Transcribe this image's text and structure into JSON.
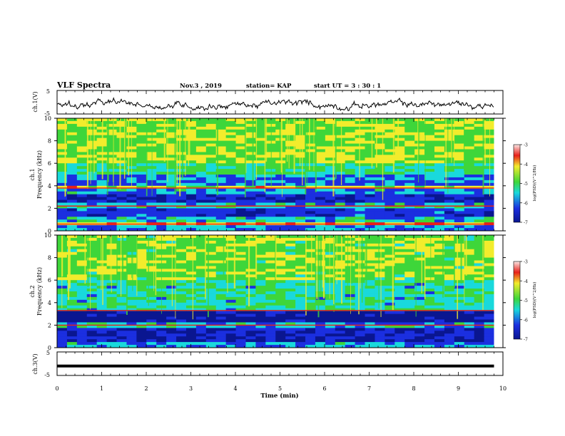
{
  "header": {
    "title": "VLF Spectra",
    "date": "Nov.3 , 2019",
    "station": "station= KAP",
    "start": "start UT = 3 : 30 : 1"
  },
  "colors": {
    "red": "#e8201a",
    "yellow": "#f2ec2c",
    "green": "#3ed63a",
    "cyan": "#19d9dc",
    "blue": "#1b2fe0",
    "navy": "#0a1690",
    "line": "#000000"
  },
  "chart_data": [
    {
      "type": "line",
      "ylabel": "ch.1(V)",
      "ylim": [
        -5,
        5
      ],
      "yticks": [
        -5,
        5
      ],
      "xlim": [
        0,
        10
      ],
      "x_range_recorded": [
        0,
        9.8
      ],
      "note_values": "noisy waveform fluctuating around roughly -1 V"
    },
    {
      "type": "heatmap",
      "ylabel": "ch.1\nFrequency (kHz)",
      "ylim": [
        0,
        10
      ],
      "yticks": [
        0,
        2,
        4,
        6,
        8,
        10
      ],
      "xlim": [
        0,
        10
      ],
      "colorbar": {
        "label": "log(PSD)(V^2/Hz)",
        "range": [
          -7,
          -3
        ],
        "ticks": [
          -7,
          -6,
          -5,
          -4,
          -3
        ]
      },
      "bands": [
        {
          "from": 0,
          "to": 0.5,
          "level": -5.5
        },
        {
          "from": 0.5,
          "to": 0.8,
          "level": -3.5
        },
        {
          "from": 0.8,
          "to": 1.2,
          "level": -5.2
        },
        {
          "from": 1.2,
          "to": 2.0,
          "level": -6.0
        },
        {
          "from": 2.0,
          "to": 2.6,
          "level": -5.2
        },
        {
          "from": 2.6,
          "to": 3.3,
          "level": -6.2
        },
        {
          "from": 3.3,
          "to": 3.7,
          "level": -5.4
        },
        {
          "from": 3.7,
          "to": 4.0,
          "level": -4.0
        },
        {
          "from": 4.0,
          "to": 5.0,
          "level": -5.6
        },
        {
          "from": 5.0,
          "to": 6.0,
          "level": -4.8
        },
        {
          "from": 6.0,
          "to": 10.0,
          "level": -4.3
        }
      ],
      "lines_khz": [
        0.6,
        2.2,
        3.8
      ]
    },
    {
      "type": "heatmap",
      "ylabel": "ch.2\nFrequency (kHz)",
      "ylim": [
        0,
        10
      ],
      "yticks": [
        0,
        2,
        4,
        6,
        8,
        10
      ],
      "xlim": [
        0,
        10
      ],
      "colorbar": {
        "label": "log(PSD)(V^2/Hz)",
        "range": [
          -7,
          -3
        ],
        "ticks": [
          -7,
          -6,
          -5,
          -4,
          -3
        ]
      },
      "bands": [
        {
          "from": 0,
          "to": 0.5,
          "level": -5.4
        },
        {
          "from": 0.5,
          "to": 1.7,
          "level": -6.3
        },
        {
          "from": 1.7,
          "to": 2.3,
          "level": -5.3
        },
        {
          "from": 2.3,
          "to": 3.3,
          "level": -6.7
        },
        {
          "from": 3.3,
          "to": 6.0,
          "level": -5.0
        },
        {
          "from": 6.0,
          "to": 10.0,
          "level": -4.4
        }
      ],
      "lines_khz": [
        2.0,
        3.3
      ]
    },
    {
      "type": "line",
      "ylabel": "ch.3(V)",
      "ylim": [
        -5,
        5
      ],
      "yticks": [
        -5,
        5
      ],
      "xlim": [
        0,
        10
      ],
      "x_range_recorded": [
        0,
        9.8
      ],
      "constant_value": -1
    }
  ],
  "xaxis": {
    "label": "Time (min)",
    "ticks": [
      0,
      1,
      2,
      3,
      4,
      5,
      6,
      7,
      8,
      9,
      10
    ]
  }
}
